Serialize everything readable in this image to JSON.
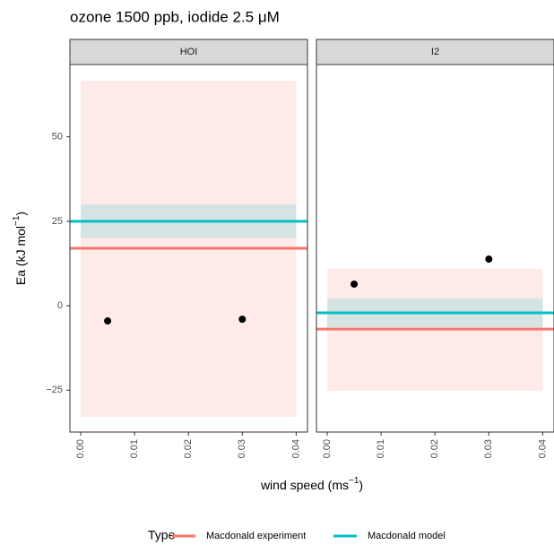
{
  "chart_data": {
    "type": "facet",
    "title": "ozone 1500 ppb, iodide 2.5 μM",
    "x_label": [
      "wind speed (ms",
      "−1",
      ")"
    ],
    "y_label": [
      "Ea (kJ mol",
      "−1",
      ")"
    ],
    "legend_title": "Type",
    "series": [
      {
        "name": "Macdonald experiment",
        "color": "#F8766D"
      },
      {
        "name": "Macdonald model",
        "color": "#00BFC4"
      }
    ],
    "xlim": [
      -0.002,
      0.0421
    ],
    "ylim": [
      -37.4,
      71.4
    ],
    "xticks": [
      {
        "value": 0,
        "label": "0.00"
      },
      {
        "value": 0.01,
        "label": "0.01"
      },
      {
        "value": 0.02,
        "label": "0.02"
      },
      {
        "value": 0.03,
        "label": "0.03"
      },
      {
        "value": 0.04,
        "label": "0.04"
      }
    ],
    "yticks": [
      {
        "value": -25,
        "label": "−25"
      },
      0,
      25,
      50
    ],
    "band_x": [
      0,
      0.04
    ],
    "panels": [
      {
        "name": "HOI",
        "points": {
          "x": [
            0.005,
            0.03
          ],
          "y": [
            -4.5,
            -4.0
          ]
        },
        "lines": [
          {
            "value": 17,
            "low": -32.9,
            "high": 66.6
          },
          {
            "value": 25,
            "low": 20,
            "high": 30
          }
        ]
      },
      {
        "name": "I2",
        "points": {
          "x": [
            0.005,
            0.03
          ],
          "y": [
            6.4,
            13.8
          ]
        },
        "lines": [
          {
            "value": -6.9,
            "low": -25.2,
            "high": 10.9
          },
          {
            "value": -2.1,
            "low": -6.4,
            "high": 2.1
          }
        ]
      }
    ]
  }
}
